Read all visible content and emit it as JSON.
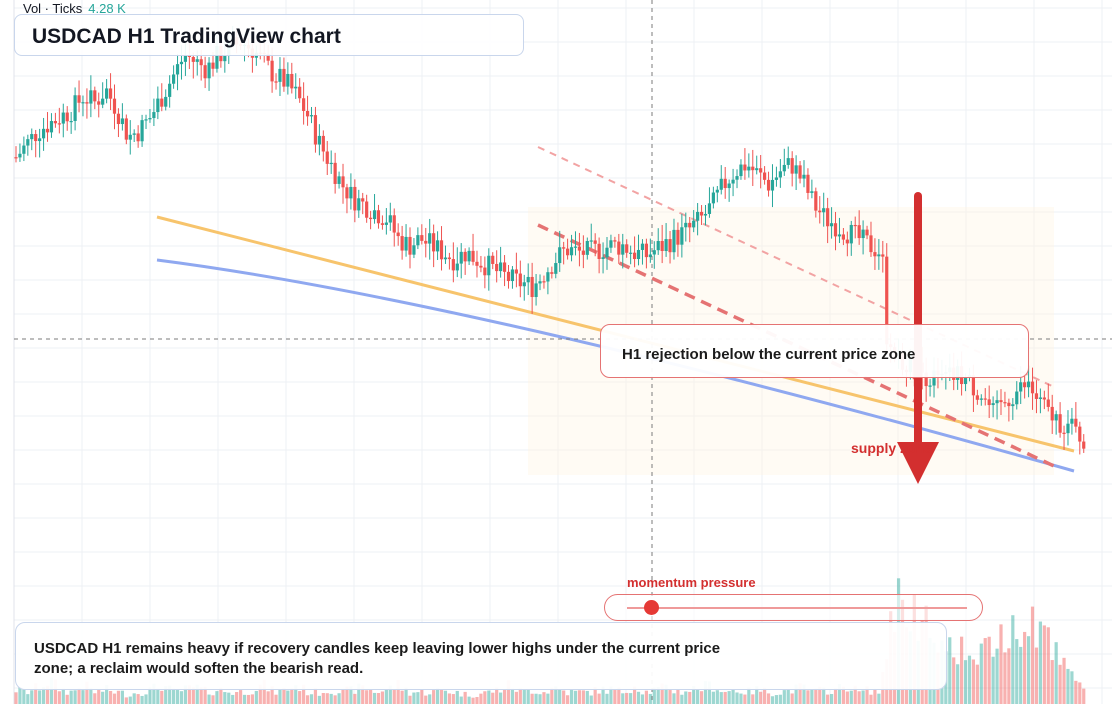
{
  "header": {
    "title": "USDCAD H1 TradingView chart",
    "volume_label": "Vol · Ticks",
    "volume_value": "4.28 K"
  },
  "annotations": {
    "callout": "H1 rejection below the current price zone",
    "zone_label": "supply zone",
    "momentum_label": "momentum pressure",
    "momentum_level": 0.07,
    "summary": "USDCAD H1 remains heavy if recovery candles keep leaving lower highs under the current price zone; a reclaim would soften the bearish read."
  },
  "colors": {
    "up": "#26a69a",
    "down": "#ef5350",
    "ema_fast": "#f7c46c",
    "ema_slow": "#8fa8f0",
    "trend": "#e57373",
    "arrow": "#d32f2f"
  },
  "chart_data": {
    "type": "candlestick",
    "timeframe": "H1",
    "symbol": "USDCAD",
    "grid": true,
    "volume_pane": true,
    "indicator_lines": [
      "fast moving average",
      "slow moving average"
    ],
    "trend_lines": [
      "dashed channel upper",
      "dashed channel lower"
    ],
    "bias": "bearish",
    "close_path": [
      52,
      56,
      60,
      62,
      64,
      66,
      70,
      68,
      72,
      66,
      58,
      60,
      64,
      70,
      76,
      82,
      80,
      78,
      82,
      84,
      86,
      84,
      80,
      76,
      74,
      70,
      64,
      56,
      50,
      44,
      40,
      38,
      36,
      34,
      28,
      26,
      28,
      26,
      24,
      22,
      24,
      22,
      20,
      18,
      16,
      15,
      14,
      18,
      22,
      25,
      24,
      24,
      25,
      26,
      26,
      24,
      23,
      25,
      27,
      29,
      31,
      34,
      38,
      44,
      48,
      50,
      47,
      44,
      48,
      50,
      45,
      38,
      34,
      32,
      30,
      28,
      26,
      24,
      -4,
      -8,
      -10,
      -12,
      -14,
      -13,
      -12,
      -15,
      -18,
      -24,
      -20,
      -17,
      -15,
      -20,
      -24,
      -26,
      -28,
      -31
    ],
    "volume_path": [
      0.12,
      0.1,
      0.14,
      0.2,
      0.12,
      0.1,
      0.16,
      0.1,
      0.12,
      0.1,
      0.08,
      0.1,
      0.12,
      0.16,
      0.1,
      0.12,
      0.14,
      0.1,
      0.12,
      0.1,
      0.1,
      0.12,
      0.16,
      0.1,
      0.12,
      0.16,
      0.1,
      0.1,
      0.12,
      0.1,
      0.12,
      0.14,
      0.1,
      0.12,
      0.16,
      0.1,
      0.1,
      0.1,
      0.12,
      0.1,
      0.08,
      0.08,
      0.1,
      0.12,
      0.16,
      0.1,
      0.12,
      0.1,
      0.14,
      0.1,
      0.1,
      0.1,
      0.12,
      0.12,
      0.1,
      0.16,
      0.1,
      0.12,
      0.14,
      0.1,
      0.12,
      0.14,
      0.16,
      0.1,
      0.12,
      0.1,
      0.12,
      0.1,
      0.1,
      0.12,
      0.14,
      0.1,
      0.12,
      0.12,
      0.16,
      0.1,
      0.12,
      0.1,
      0.95,
      0.8,
      0.75,
      0.7,
      0.6,
      0.55,
      0.5,
      0.45,
      0.4,
      0.5,
      0.6,
      0.7,
      0.8,
      0.7,
      0.5,
      0.4,
      0.2,
      0.12
    ]
  }
}
